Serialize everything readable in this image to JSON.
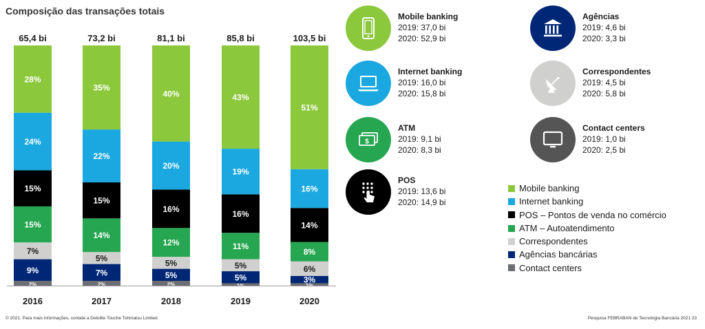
{
  "page": {
    "footer_left": "© 2021. Para mais informações, contate a  Deloitte Touche Tohmatsu Limited.",
    "footer_right": "Pesquisa FEBRABAN de Tecnologia Bancária 2021   23"
  },
  "chart_data": {
    "type": "bar",
    "stacked": true,
    "normalized": true,
    "title": "Composição das transações totais",
    "categories": [
      "2016",
      "2017",
      "2018",
      "2019",
      "2020"
    ],
    "totals": [
      "65,4 bi",
      "73,2 bi",
      "81,1 bi",
      "85,8 bi",
      "103,5 bi"
    ],
    "ylim": [
      0,
      100
    ],
    "grid": false,
    "legend_position": "bottom-right",
    "series": [
      {
        "key": "contact",
        "name": "Contact centers",
        "color": "#6d6e71",
        "values": [
          2,
          2,
          2,
          1,
          1
        ],
        "labels": [
          "2%",
          "2%",
          "2%",
          "1%",
          "1%"
        ]
      },
      {
        "key": "agencias",
        "name": "Agências bancárias",
        "color": "#002776",
        "values": [
          9,
          7,
          5,
          5,
          3
        ],
        "labels": [
          "9%",
          "7%",
          "5%",
          "5%",
          "3%"
        ]
      },
      {
        "key": "correspondentes",
        "name": "Correspondentes",
        "color": "#d0d0ce",
        "values": [
          7,
          5,
          5,
          5,
          6
        ],
        "labels": [
          "7%",
          "5%",
          "5%",
          "5%",
          "6%"
        ]
      },
      {
        "key": "atm",
        "name": "ATM – Autoatendimento",
        "color": "#26a650",
        "values": [
          15,
          14,
          12,
          11,
          8
        ],
        "labels": [
          "15%",
          "14%",
          "12%",
          "11%",
          "8%"
        ]
      },
      {
        "key": "pos",
        "name": "POS – Pontos de venda no comércio",
        "color": "#000000",
        "values": [
          15,
          15,
          16,
          16,
          14
        ],
        "labels": [
          "15%",
          "15%",
          "16%",
          "16%",
          "14%"
        ]
      },
      {
        "key": "internet",
        "name": "Internet banking",
        "color": "#1ba8e0",
        "values": [
          24,
          22,
          20,
          19,
          16
        ],
        "labels": [
          "24%",
          "22%",
          "20%",
          "19%",
          "16%"
        ]
      },
      {
        "key": "mobile",
        "name": "Mobile banking",
        "color": "#8cc83c",
        "values": [
          28,
          35,
          40,
          43,
          51
        ],
        "labels": [
          "28%",
          "35%",
          "40%",
          "43%",
          "51%"
        ]
      }
    ]
  },
  "channels": [
    {
      "name": "Mobile banking",
      "line1": "2019: 37,0 bi",
      "line2": "2020: 52,9 bi",
      "color": "#8cc83c",
      "icon": "smartphone-icon"
    },
    {
      "name": "Internet banking",
      "line1": "2019: 16,0 bi",
      "line2": "2020: 15,8 bi",
      "color": "#1ba8e0",
      "icon": "laptop-icon"
    },
    {
      "name": "ATM",
      "line1": "2019: 9,1 bi",
      "line2": "2020: 8,3 bi",
      "color": "#26a650",
      "icon": "cash-icon"
    },
    {
      "name": "POS",
      "line1": "2019: 13,6 bi",
      "line2": "2020: 14,9 bi",
      "color": "#000000",
      "icon": "keypad-tap-icon"
    },
    {
      "name": "Agências",
      "line1": "2019: 4,6 bi",
      "line2": "2020: 3,3 bi",
      "color": "#002776",
      "icon": "bank-building-icon"
    },
    {
      "name": "Correspondentes",
      "line1": "2019: 4,5 bi",
      "line2": "2020: 5,8 bi",
      "color": "#d0d0ce",
      "icon": "satellite-dish-icon"
    },
    {
      "name": "Contact centers",
      "line1": "2019: 1,0 bi",
      "line2": "2020: 2,5 bi",
      "color": "#555555",
      "icon": "monitor-icon"
    }
  ],
  "legend": [
    {
      "label": "Mobile banking",
      "color": "#8cc83c"
    },
    {
      "label": "Internet banking",
      "color": "#1ba8e0"
    },
    {
      "label": "POS – Pontos de venda no comércio",
      "color": "#000000"
    },
    {
      "label": "ATM – Autoatendimento",
      "color": "#26a650"
    },
    {
      "label": "Correspondentes",
      "color": "#d0d0ce"
    },
    {
      "label": "Agências bancárias",
      "color": "#002776"
    },
    {
      "label": "Contact centers",
      "color": "#6d6e71"
    }
  ]
}
